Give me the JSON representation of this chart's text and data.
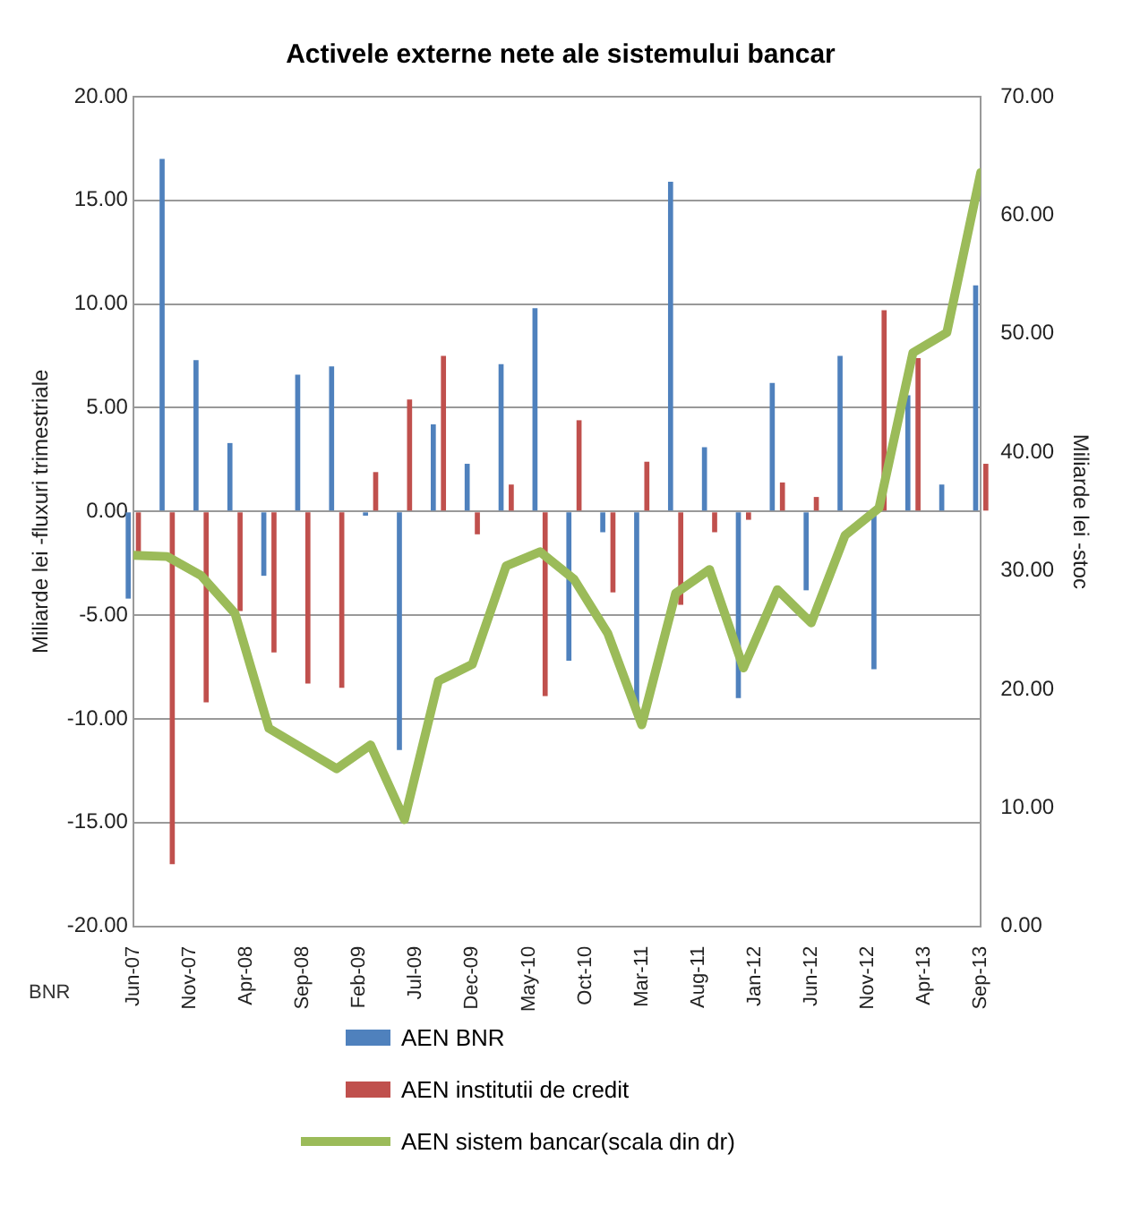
{
  "chart_data": {
    "type": "bar",
    "title": "Activele externe nete ale sistemului bancar",
    "ylabel": "Miliarde lei -fluxuri trimestriale",
    "y2label": "Miliarde lei -stoc",
    "x": [
      "2007-06",
      "2007-09",
      "2007-12",
      "2008-03",
      "2008-06",
      "2008-09",
      "2008-12",
      "2009-03",
      "2009-06",
      "2009-09",
      "2009-12",
      "2010-03",
      "2010-06",
      "2010-09",
      "2010-12",
      "2011-03",
      "2011-06",
      "2011-09",
      "2011-12",
      "2012-03",
      "2012-06",
      "2012-09",
      "2012-12",
      "2013-03",
      "2013-06",
      "2013-09"
    ],
    "series": [
      {
        "name": "AEN BNR",
        "color": "#4f81bd",
        "values": [
          -4.2,
          17.0,
          7.3,
          3.3,
          -3.1,
          6.6,
          7.0,
          -0.2,
          -11.5,
          4.2,
          2.3,
          7.1,
          9.8,
          -7.2,
          -1.0,
          -9.4,
          15.9,
          3.1,
          -9.0,
          6.2,
          -3.8,
          7.5,
          -7.6,
          5.6,
          1.3,
          10.9
        ]
      },
      {
        "name": "AEN institutii de credit",
        "color": "#c0504d",
        "values": [
          -2.0,
          -17.0,
          -9.2,
          -4.8,
          -6.8,
          -8.3,
          -8.5,
          1.9,
          5.4,
          7.5,
          -1.1,
          1.3,
          -8.9,
          4.4,
          -3.9,
          2.4,
          -4.5,
          -1.0,
          -0.4,
          1.4,
          0.7,
          0.0,
          9.7,
          7.4,
          0.0,
          2.3
        ]
      },
      {
        "name": "AEN sistem bancar(scala din dr)",
        "type": "line",
        "axis": "y2",
        "color": "#9bbb59",
        "values": [
          31.3,
          31.2,
          29.6,
          26.4,
          16.7,
          15.0,
          13.3,
          15.3,
          9.0,
          20.7,
          22.1,
          30.4,
          31.6,
          29.3,
          24.7,
          17.0,
          28.1,
          30.1,
          21.8,
          28.4,
          25.6,
          33.0,
          35.3,
          48.4,
          50.1,
          63.6
        ]
      }
    ],
    "xlim": [
      "2007-06",
      "2013-09"
    ],
    "xticks": [
      {
        "value": "2007-06",
        "label": "Jun-07"
      },
      {
        "value": "2007-11",
        "label": "Nov-07"
      },
      {
        "value": "2008-04",
        "label": "Apr-08"
      },
      {
        "value": "2008-09",
        "label": "Sep-08"
      },
      {
        "value": "2009-02",
        "label": "Feb-09"
      },
      {
        "value": "2009-07",
        "label": "Jul-09"
      },
      {
        "value": "2009-12",
        "label": "Dec-09"
      },
      {
        "value": "2010-05",
        "label": "May-10"
      },
      {
        "value": "2010-10",
        "label": "Oct-10"
      },
      {
        "value": "2011-03",
        "label": "Mar-11"
      },
      {
        "value": "2011-08",
        "label": "Aug-11"
      },
      {
        "value": "2012-01",
        "label": "Jan-12"
      },
      {
        "value": "2012-06",
        "label": "Jun-12"
      },
      {
        "value": "2012-11",
        "label": "Nov-12"
      },
      {
        "value": "2013-04",
        "label": "Apr-13"
      },
      {
        "value": "2013-09",
        "label": "Sep-13"
      }
    ],
    "ylim": [
      -20,
      20
    ],
    "yticks": [
      {
        "value": -20,
        "label": "-20.00"
      },
      {
        "value": -15,
        "label": "-15.00"
      },
      {
        "value": -10,
        "label": "-10.00"
      },
      {
        "value": -5,
        "label": "-5.00"
      },
      {
        "value": 0,
        "label": "0.00"
      },
      {
        "value": 5,
        "label": "5.00"
      },
      {
        "value": 10,
        "label": "10.00"
      },
      {
        "value": 15,
        "label": "15.00"
      },
      {
        "value": 20,
        "label": "20.00"
      }
    ],
    "y2lim": [
      0,
      70
    ],
    "y2ticks": [
      {
        "value": 0,
        "label": "0.00"
      },
      {
        "value": 10,
        "label": "10.00"
      },
      {
        "value": 20,
        "label": "20.00"
      },
      {
        "value": 30,
        "label": "30.00"
      },
      {
        "value": 40,
        "label": "40.00"
      },
      {
        "value": 50,
        "label": "50.00"
      },
      {
        "value": 60,
        "label": "60.00"
      },
      {
        "value": 70,
        "label": "70.00"
      }
    ],
    "grid": "y",
    "legend": "bottom",
    "annotations": [
      "BNR"
    ]
  }
}
